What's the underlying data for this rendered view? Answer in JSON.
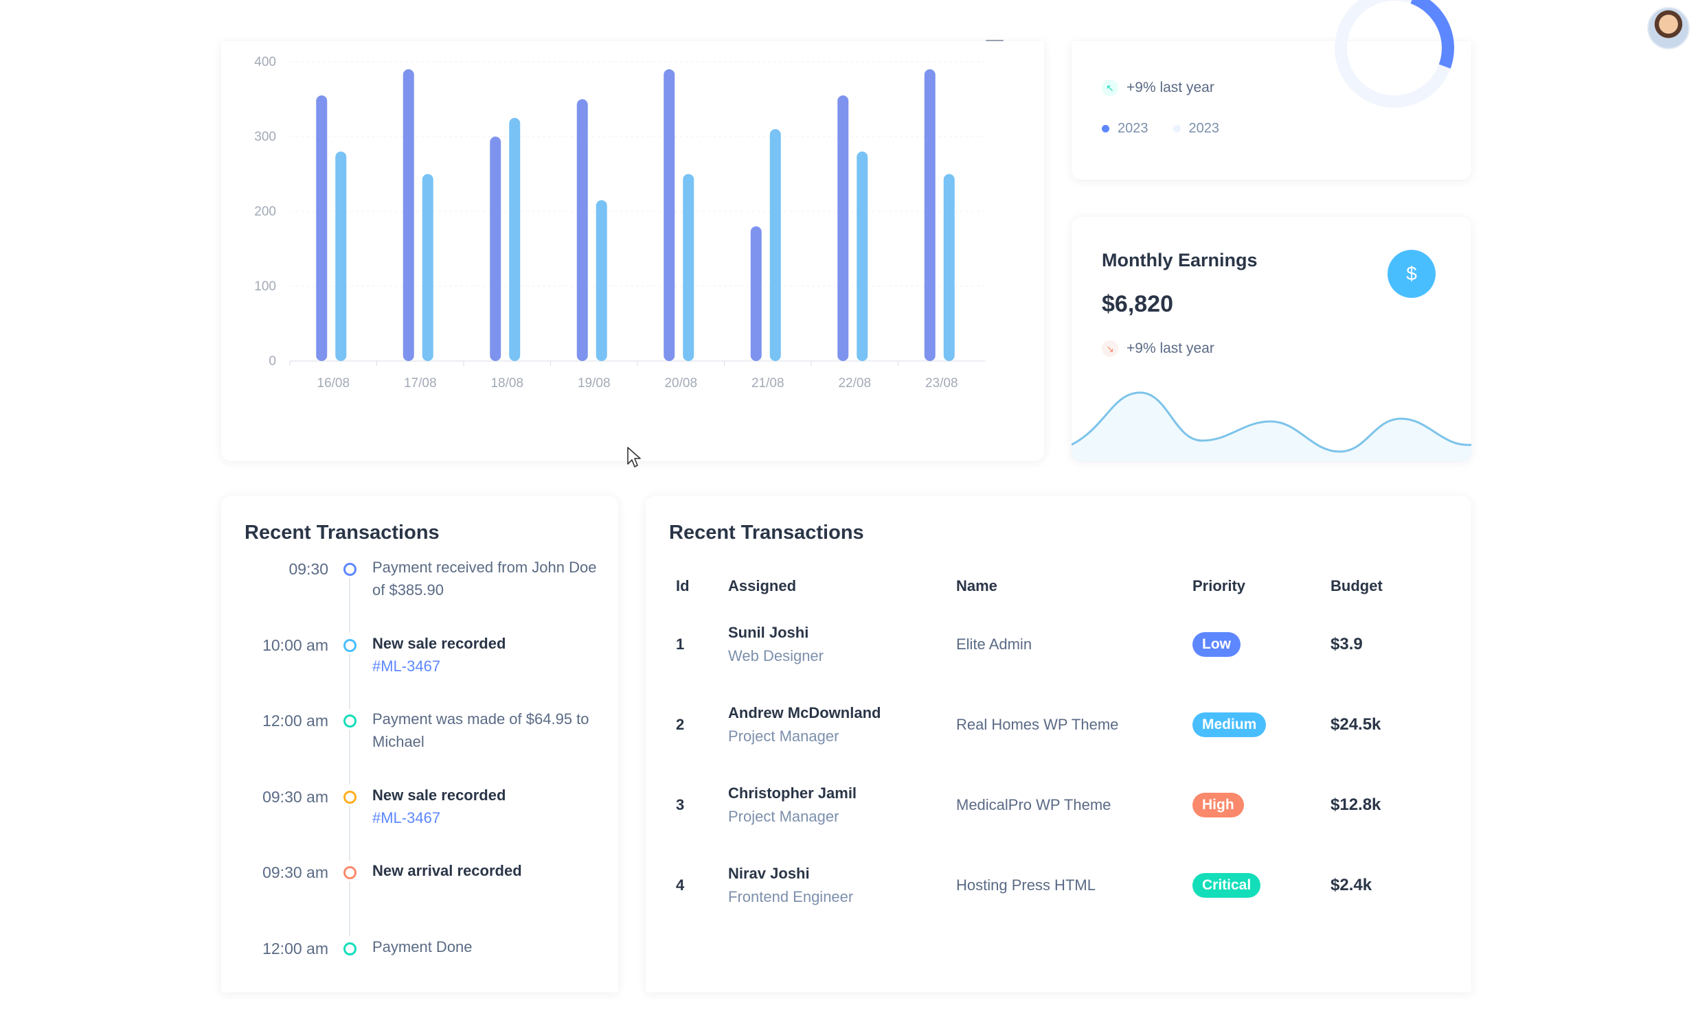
{
  "topbar": {
    "menu_icon": "hamburger-menu-icon",
    "avatar": "user-avatar"
  },
  "colors": {
    "primary": "#5d87ff",
    "secondary": "#49beff",
    "success": "#13deb9",
    "warning": "#ffae1f",
    "danger": "#fa896b",
    "bar_primary": "#7e93ee",
    "bar_secondary": "#78c2f5"
  },
  "bar_chart": {
    "chart_data": {
      "type": "bar",
      "categories": [
        "16/08",
        "17/08",
        "18/08",
        "19/08",
        "20/08",
        "21/08",
        "22/08",
        "23/08"
      ],
      "series": [
        {
          "values": [
            355,
            390,
            300,
            350,
            390,
            180,
            355,
            390
          ]
        },
        {
          "values": [
            280,
            250,
            325,
            215,
            250,
            310,
            280,
            250
          ]
        }
      ],
      "yticks": [
        "0",
        "100",
        "200",
        "300",
        "400"
      ],
      "ylim": [
        0,
        400
      ],
      "grid": true
    }
  },
  "yearly": {
    "trend_text": "+9% last year",
    "legend": [
      {
        "label": "2023",
        "color": "#5d87ff"
      },
      {
        "label": "2023",
        "color": "#ecf2ff"
      }
    ],
    "donut_fraction": 0.25
  },
  "earnings": {
    "title": "Monthly Earnings",
    "value": "$6,820",
    "trend_text": "+9% last year",
    "currency_symbol": "$"
  },
  "timeline": {
    "title": "Recent Transactions",
    "items": [
      {
        "time": "09:30",
        "text": "Payment received from John Doe of $385.90",
        "link": "",
        "bold": false,
        "color": "#5d87ff"
      },
      {
        "time": "10:00 am",
        "text": "New sale recorded",
        "link": "#ML-3467",
        "bold": true,
        "color": "#49beff"
      },
      {
        "time": "12:00 am",
        "text": "Payment was made of $64.95 to Michael",
        "link": "",
        "bold": false,
        "color": "#13deb9"
      },
      {
        "time": "09:30 am",
        "text": "New sale recorded",
        "link": "#ML-3467",
        "bold": true,
        "color": "#ffae1f"
      },
      {
        "time": "09:30 am",
        "text": "New arrival recorded",
        "link": "",
        "bold": true,
        "color": "#fa896b"
      },
      {
        "time": "12:00 am",
        "text": "Payment Done",
        "link": "",
        "bold": false,
        "color": "#13deb9"
      }
    ]
  },
  "table": {
    "title": "Recent Transactions",
    "headers": [
      "Id",
      "Assigned",
      "Name",
      "Priority",
      "Budget"
    ],
    "rows": [
      {
        "id": "1",
        "assignee": "Sunil Joshi",
        "role": "Web Designer",
        "name": "Elite Admin",
        "priority": "Low",
        "priority_color": "#5d87ff",
        "budget": "$3.9"
      },
      {
        "id": "2",
        "assignee": "Andrew McDownland",
        "role": "Project Manager",
        "name": "Real Homes WP Theme",
        "priority": "Medium",
        "priority_color": "#49beff",
        "budget": "$24.5k"
      },
      {
        "id": "3",
        "assignee": "Christopher Jamil",
        "role": "Project Manager",
        "name": "MedicalPro WP Theme",
        "priority": "High",
        "priority_color": "#fa896b",
        "budget": "$12.8k"
      },
      {
        "id": "4",
        "assignee": "Nirav Joshi",
        "role": "Frontend Engineer",
        "name": "Hosting Press HTML",
        "priority": "Critical",
        "priority_color": "#13deb9",
        "budget": "$2.4k"
      }
    ]
  }
}
